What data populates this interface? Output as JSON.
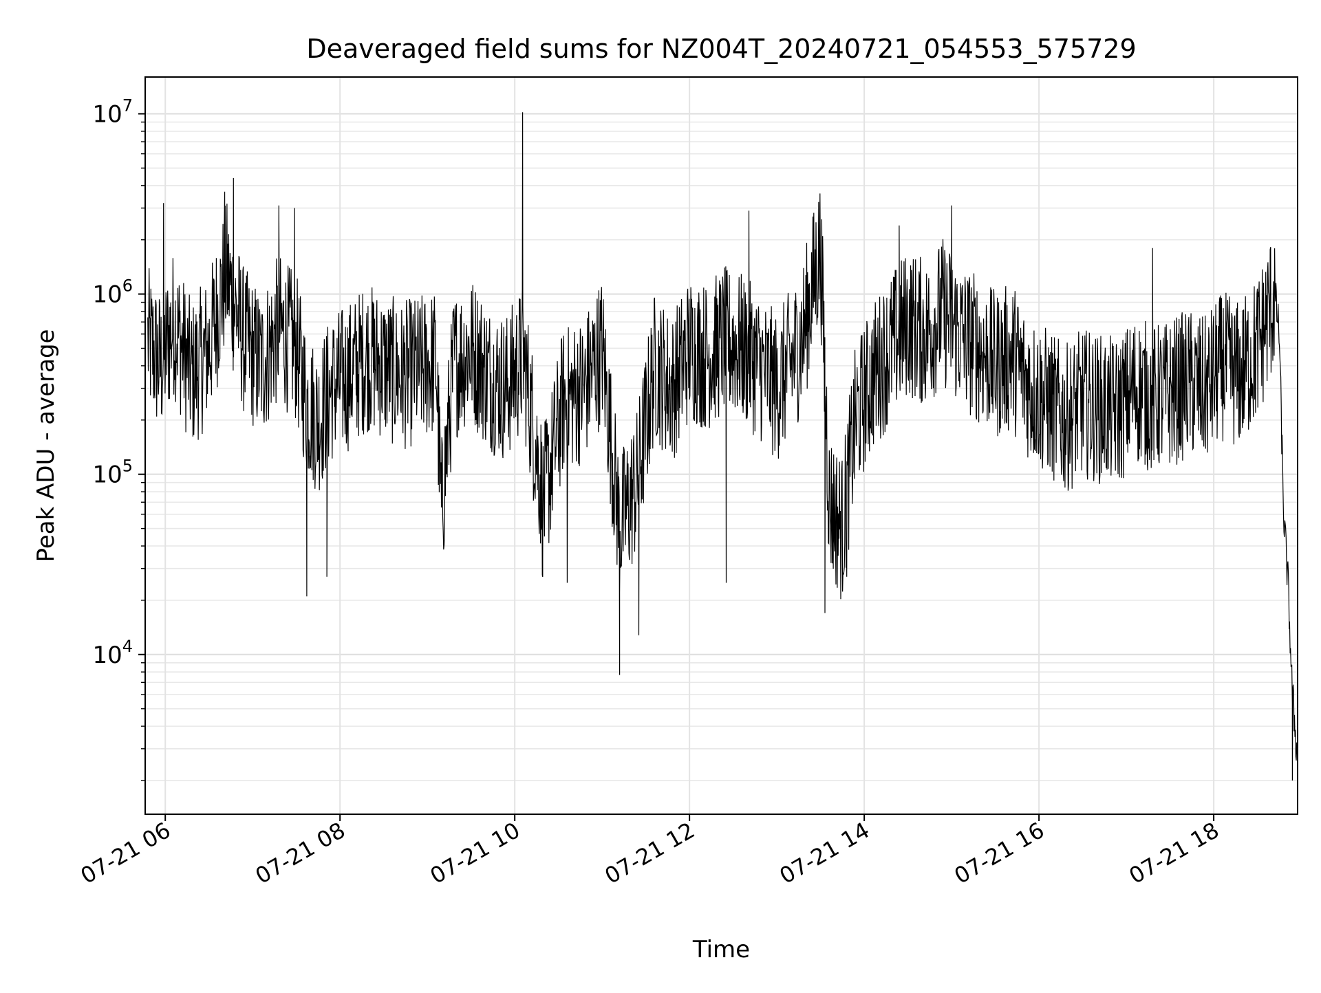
{
  "chart_data": {
    "type": "line",
    "title": "Deaveraged field sums for NZ004T_20240721_054553_575729",
    "xlabel": "Time",
    "ylabel": "Peak ADU - average",
    "x_tick_labels": [
      "07-21 06",
      "07-21 08",
      "07-21 10",
      "07-21 12",
      "07-21 14",
      "07-21 16",
      "07-21 18"
    ],
    "x_tick_hours": [
      6,
      8,
      10,
      12,
      14,
      16,
      18
    ],
    "x_range_hours": [
      5.77,
      18.96
    ],
    "y_scale": "log",
    "y_range": [
      1300,
      16000000
    ],
    "y_major_ticks": [
      {
        "base": "10",
        "exp": "4",
        "value": 10000
      },
      {
        "base": "10",
        "exp": "5",
        "value": 100000
      },
      {
        "base": "10",
        "exp": "6",
        "value": 1000000
      },
      {
        "base": "10",
        "exp": "7",
        "value": 10000000
      }
    ],
    "grid": true,
    "grid_minor": true,
    "line_color": "#000000",
    "series": [
      {
        "x_hours": [
          5.8,
          5.95,
          6.1,
          6.3,
          6.5,
          6.7,
          6.9,
          7.1,
          7.3,
          7.5,
          7.62,
          7.75,
          7.9,
          8.1,
          8.3,
          8.5,
          8.7,
          8.9,
          9.1,
          9.16,
          9.3,
          9.5,
          9.7,
          9.9,
          10.1,
          10.3,
          10.32,
          10.55,
          10.8,
          11.0,
          11.2,
          11.4,
          11.6,
          11.8,
          12.0,
          12.2,
          12.4,
          12.6,
          12.8,
          13.0,
          13.2,
          13.3,
          13.5,
          13.6,
          13.75,
          13.9,
          14.1,
          14.3,
          14.5,
          14.7,
          14.9,
          15.1,
          15.3,
          15.5,
          15.7,
          15.9,
          16.1,
          16.3,
          16.5,
          16.7,
          16.9,
          17.1,
          17.3,
          17.5,
          17.7,
          17.9,
          18.1,
          18.3,
          18.5,
          18.6,
          18.7,
          18.75,
          18.8,
          18.85,
          18.9,
          18.93,
          18.96
        ],
        "y": [
          550000,
          400000,
          700000,
          350000,
          500000,
          1300000,
          550000,
          400000,
          650000,
          500000,
          250000,
          200000,
          300000,
          350000,
          450000,
          400000,
          350000,
          380000,
          420000,
          60000,
          400000,
          500000,
          350000,
          300000,
          450000,
          90000,
          65000,
          250000,
          300000,
          500000,
          50000,
          90000,
          400000,
          300000,
          500000,
          450000,
          550000,
          500000,
          400000,
          300000,
          450000,
          600000,
          1800000,
          70000,
          50000,
          200000,
          350000,
          500000,
          700000,
          600000,
          800000,
          600000,
          500000,
          400000,
          450000,
          300000,
          250000,
          200000,
          250000,
          230000,
          220000,
          300000,
          260000,
          280000,
          320000,
          290000,
          400000,
          350000,
          500000,
          700000,
          1000000,
          600000,
          60000,
          25000,
          6000,
          4000,
          2500
        ],
        "peaks": [
          {
            "x_hours": 5.98,
            "y": 3200000
          },
          {
            "x_hours": 6.68,
            "y": 3700000
          },
          {
            "x_hours": 6.78,
            "y": 4400000
          },
          {
            "x_hours": 7.3,
            "y": 3100000
          },
          {
            "x_hours": 7.48,
            "y": 3000000
          },
          {
            "x_hours": 10.09,
            "y": 10200000
          },
          {
            "x_hours": 12.68,
            "y": 2900000
          },
          {
            "x_hours": 14.4,
            "y": 2400000
          },
          {
            "x_hours": 15.0,
            "y": 3100000
          },
          {
            "x_hours": 17.3,
            "y": 1800000
          }
        ],
        "troughs": [
          {
            "x_hours": 7.62,
            "y": 21000
          },
          {
            "x_hours": 7.85,
            "y": 27000
          },
          {
            "x_hours": 10.32,
            "y": 34000
          },
          {
            "x_hours": 10.6,
            "y": 25000
          },
          {
            "x_hours": 11.2,
            "y": 7700
          },
          {
            "x_hours": 11.42,
            "y": 12800
          },
          {
            "x_hours": 12.42,
            "y": 25000
          },
          {
            "x_hours": 13.55,
            "y": 17000
          },
          {
            "x_hours": 13.8,
            "y": 27000
          },
          {
            "x_hours": 18.9,
            "y": 2000
          }
        ]
      }
    ]
  }
}
